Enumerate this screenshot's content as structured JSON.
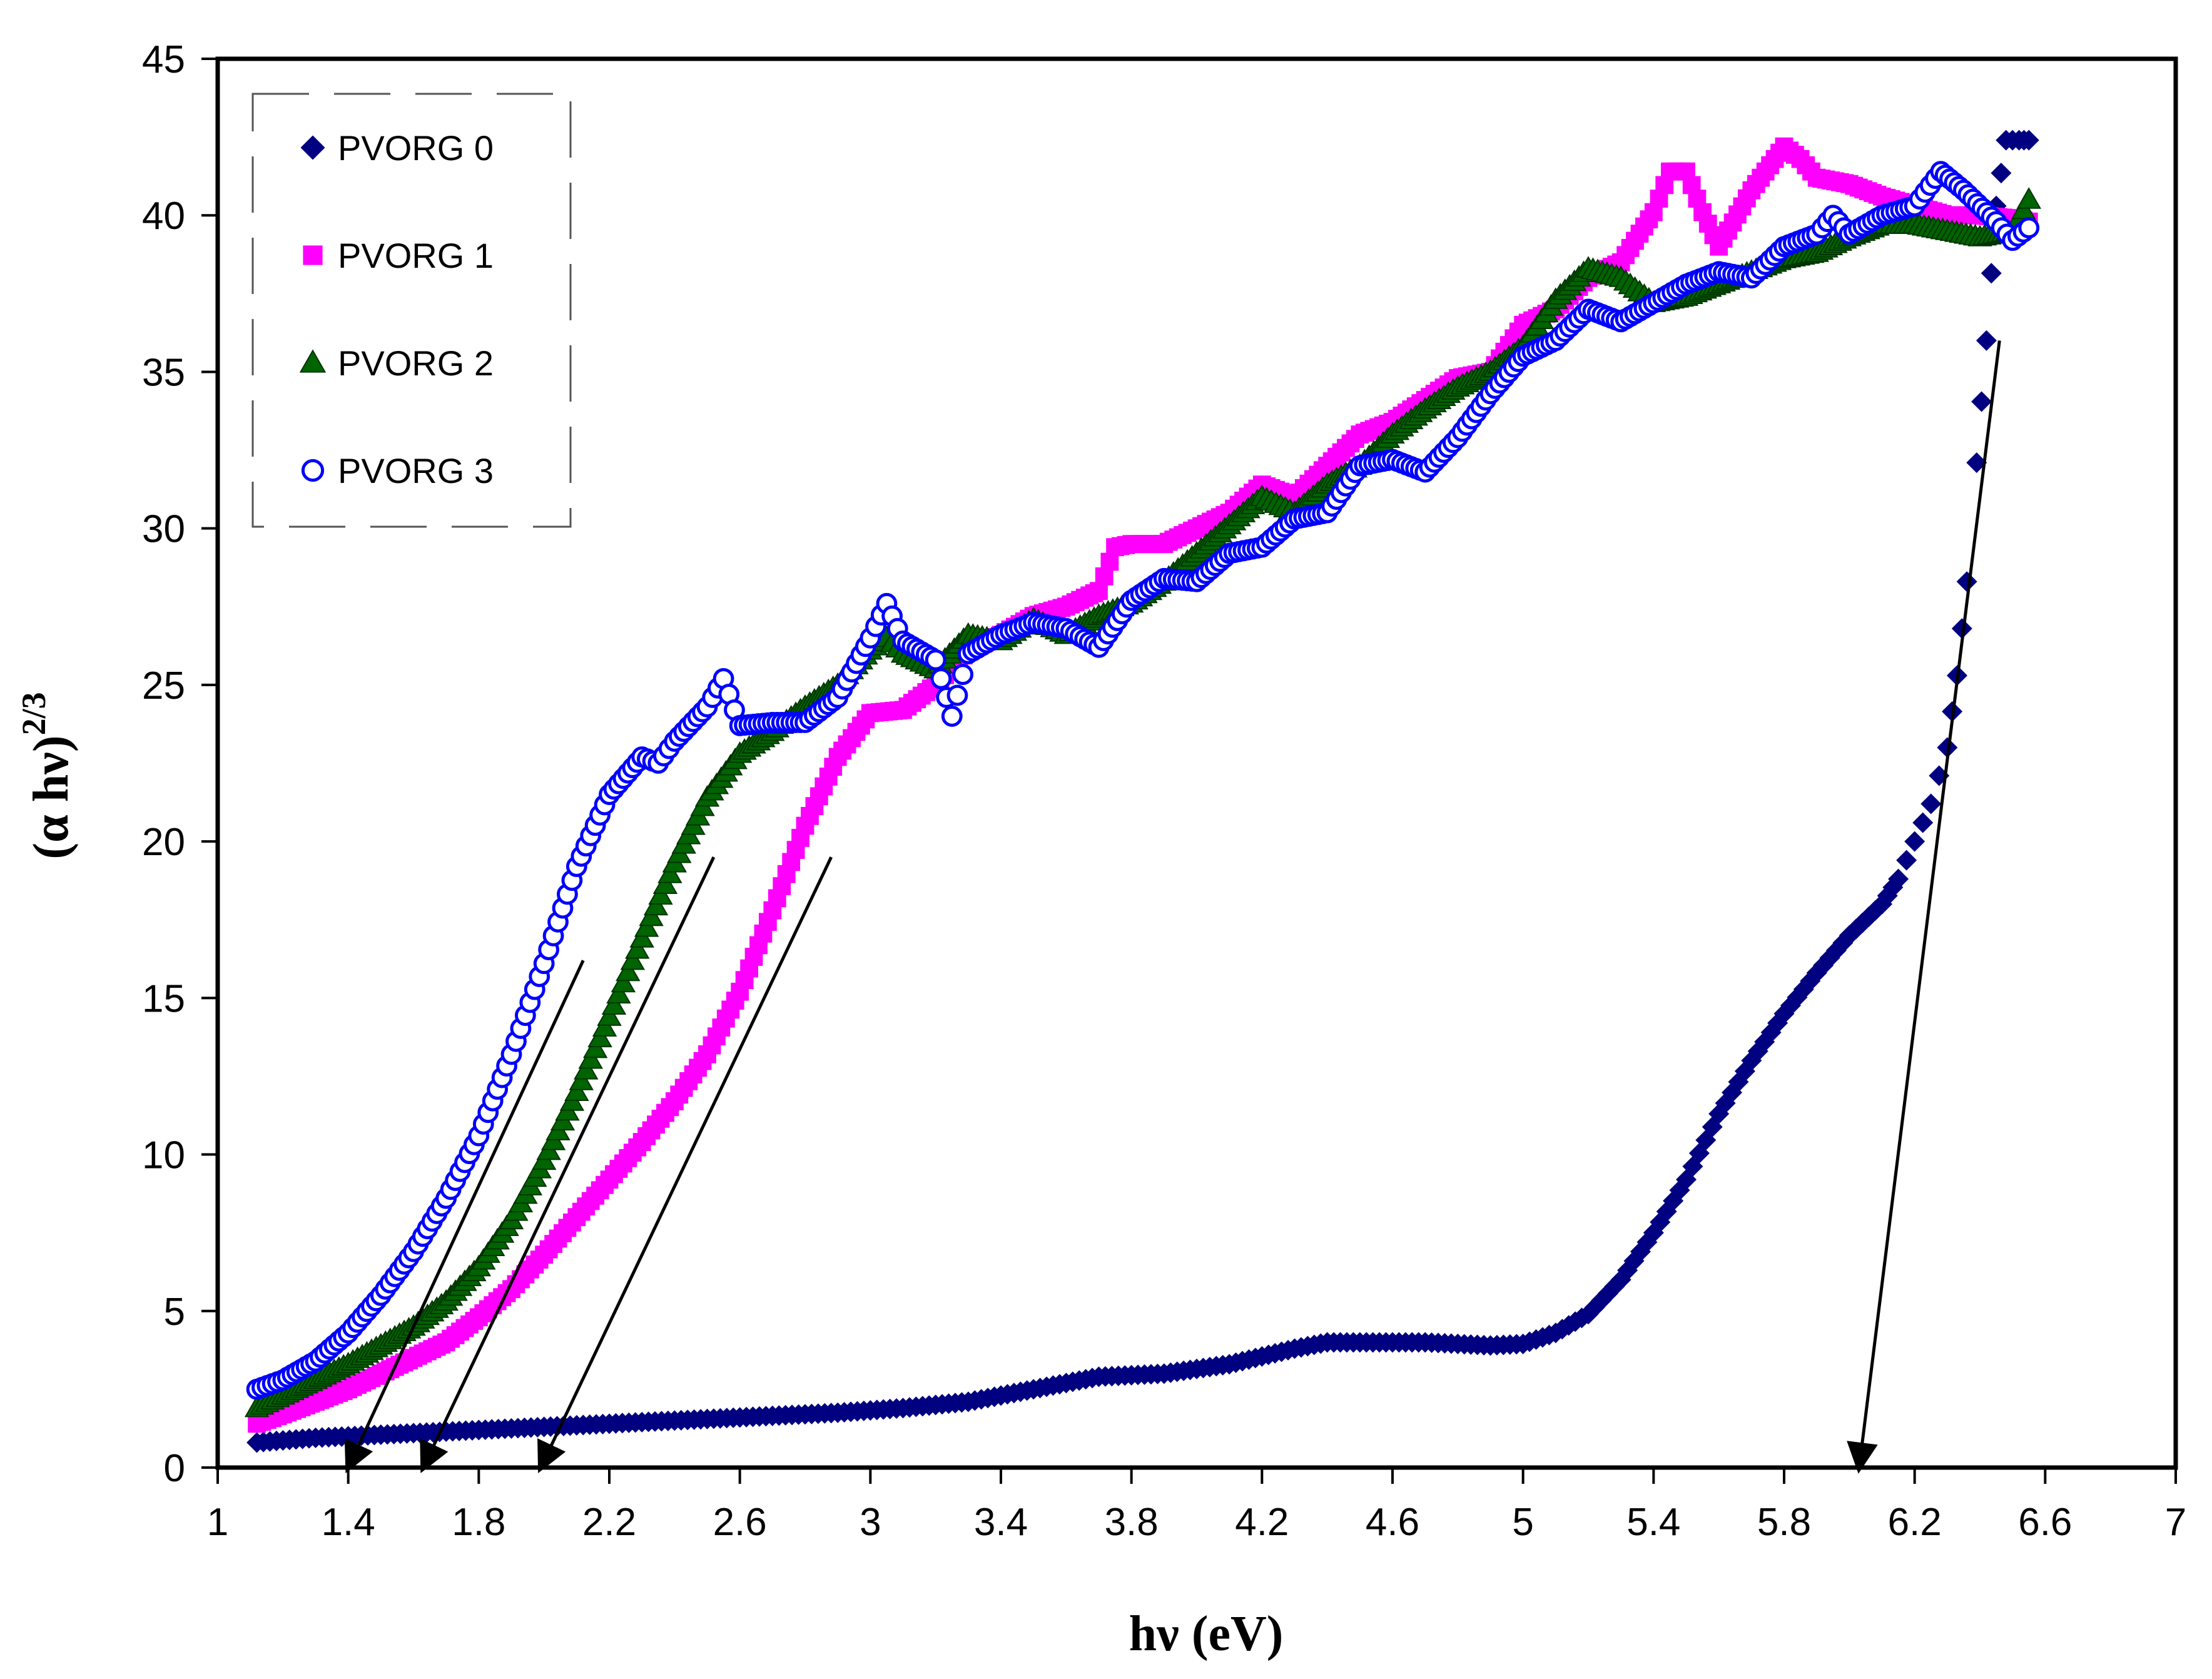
{
  "chart_data": {
    "type": "scatter",
    "title": "",
    "xlabel": "hν (eV)",
    "ylabel": "(α hν)",
    "ylabel_exponent": "2/3",
    "xlim": [
      1,
      7
    ],
    "ylim": [
      0,
      45
    ],
    "xticks": [
      1,
      1.4,
      1.8,
      2.2,
      2.6,
      3,
      3.4,
      3.8,
      4.2,
      4.6,
      5,
      5.4,
      5.8,
      6.2,
      6.6,
      7
    ],
    "xtick_labels": [
      "1",
      "1.4",
      "1.8",
      "2.2",
      "2.6",
      "3",
      "3.4",
      "3.8",
      "4.2",
      "4.6",
      "5",
      "5.4",
      "5.8",
      "6.2",
      "6.6",
      "7"
    ],
    "yticks": [
      0,
      5,
      10,
      15,
      20,
      25,
      30,
      35,
      40,
      45
    ],
    "ytick_labels": [
      "0",
      "5",
      "10",
      "15",
      "20",
      "25",
      "30",
      "35",
      "40",
      "45"
    ],
    "grid": false,
    "legend_position": "top-left",
    "series": [
      {
        "name": "PVORG 0",
        "marker": "diamond",
        "color": "#000080",
        "x": [
          1.12,
          1.3,
          1.5,
          1.7,
          1.9,
          2.1,
          2.3,
          2.5,
          2.7,
          2.9,
          3.1,
          3.3,
          3.5,
          3.7,
          3.9,
          4.1,
          4.3,
          4.4,
          4.5,
          4.7,
          4.9,
          5.0,
          5.1,
          5.2,
          5.3,
          5.4,
          5.5,
          5.6,
          5.7,
          5.8,
          5.9,
          6.0,
          6.1,
          6.15,
          6.2,
          6.25,
          6.3,
          6.33,
          6.36,
          6.39,
          6.42,
          6.45,
          6.48,
          6.52,
          6.55
        ],
        "y": [
          0.8,
          0.95,
          1.05,
          1.15,
          1.25,
          1.35,
          1.45,
          1.55,
          1.65,
          1.75,
          1.9,
          2.1,
          2.5,
          2.9,
          3.0,
          3.3,
          3.8,
          4.0,
          4.0,
          4.0,
          3.9,
          3.95,
          4.3,
          4.9,
          6.0,
          7.5,
          9.2,
          11.3,
          13.0,
          14.5,
          15.8,
          17.0,
          18.0,
          18.8,
          20.0,
          21.2,
          23.0,
          25.3,
          28.3,
          32.1,
          36.0,
          40.3,
          42.4,
          42.4,
          42.4
        ]
      },
      {
        "name": "PVORG 1",
        "marker": "square",
        "color": "#FF00FF",
        "x": [
          1.12,
          1.2,
          1.3,
          1.4,
          1.5,
          1.6,
          1.7,
          1.8,
          1.9,
          2.0,
          2.1,
          2.2,
          2.3,
          2.4,
          2.5,
          2.6,
          2.7,
          2.8,
          2.9,
          3.0,
          3.1,
          3.2,
          3.3,
          3.4,
          3.5,
          3.6,
          3.7,
          3.75,
          3.8,
          3.9,
          4.0,
          4.1,
          4.2,
          4.3,
          4.4,
          4.5,
          4.6,
          4.7,
          4.8,
          4.9,
          5.0,
          5.1,
          5.2,
          5.3,
          5.4,
          5.45,
          5.5,
          5.55,
          5.6,
          5.7,
          5.8,
          5.85,
          5.9,
          6.0,
          6.1,
          6.2,
          6.3,
          6.4,
          6.5,
          6.55
        ],
        "y": [
          1.4,
          1.7,
          2.1,
          2.5,
          3.0,
          3.5,
          4.0,
          4.8,
          5.7,
          6.8,
          8.0,
          9.2,
          10.4,
          11.7,
          13.2,
          15.2,
          17.8,
          20.5,
          22.7,
          24.1,
          24.2,
          25.0,
          26.1,
          26.6,
          27.2,
          27.5,
          28.0,
          29.4,
          29.5,
          29.5,
          30.0,
          30.5,
          31.4,
          31.0,
          32.0,
          33.0,
          33.4,
          34.1,
          34.8,
          35.0,
          36.5,
          37.0,
          38.0,
          38.5,
          40.1,
          41.4,
          41.4,
          40.1,
          39.0,
          40.8,
          42.2,
          41.8,
          41.2,
          41.0,
          40.6,
          40.3,
          40.0,
          40.0,
          39.9,
          39.8
        ]
      },
      {
        "name": "PVORG 2",
        "marker": "triangle",
        "color": "#006400",
        "x": [
          1.12,
          1.2,
          1.3,
          1.4,
          1.5,
          1.6,
          1.7,
          1.8,
          1.9,
          2.0,
          2.1,
          2.2,
          2.3,
          2.4,
          2.5,
          2.6,
          2.7,
          2.8,
          2.9,
          3.0,
          3.05,
          3.1,
          3.2,
          3.3,
          3.4,
          3.5,
          3.6,
          3.7,
          3.8,
          3.9,
          4.0,
          4.1,
          4.2,
          4.3,
          4.4,
          4.5,
          4.6,
          4.7,
          4.8,
          4.9,
          5.0,
          5.1,
          5.2,
          5.3,
          5.4,
          5.5,
          5.6,
          5.7,
          5.8,
          5.9,
          6.0,
          6.1,
          6.2,
          6.3,
          6.4,
          6.5,
          6.55
        ],
        "y": [
          1.9,
          2.3,
          2.8,
          3.3,
          3.9,
          4.5,
          5.3,
          6.4,
          7.9,
          9.8,
          12.0,
          14.4,
          16.9,
          19.3,
          21.4,
          22.8,
          23.5,
          24.3,
          25.0,
          26.1,
          26.5,
          26.0,
          25.5,
          26.6,
          26.4,
          27.1,
          26.6,
          27.2,
          27.6,
          28.3,
          29.2,
          30.1,
          31.0,
          30.5,
          31.4,
          32.0,
          33.0,
          33.8,
          34.5,
          35.0,
          35.8,
          37.3,
          38.3,
          38.0,
          37.2,
          37.4,
          37.8,
          38.2,
          38.6,
          38.8,
          39.3,
          39.7,
          39.7,
          39.5,
          39.3,
          39.5,
          40.5
        ]
      },
      {
        "name": "PVORG 3",
        "marker": "circle",
        "color": "#0000FF",
        "x": [
          1.12,
          1.2,
          1.3,
          1.4,
          1.5,
          1.6,
          1.7,
          1.8,
          1.9,
          2.0,
          2.1,
          2.2,
          2.3,
          2.35,
          2.4,
          2.5,
          2.55,
          2.6,
          2.7,
          2.8,
          2.9,
          3.0,
          3.05,
          3.1,
          3.2,
          3.25,
          3.3,
          3.4,
          3.5,
          3.6,
          3.7,
          3.8,
          3.9,
          4.0,
          4.1,
          4.2,
          4.3,
          4.4,
          4.5,
          4.6,
          4.7,
          4.8,
          4.9,
          5.0,
          5.1,
          5.2,
          5.3,
          5.4,
          5.5,
          5.6,
          5.7,
          5.8,
          5.9,
          5.95,
          6.0,
          6.1,
          6.2,
          6.28,
          6.35,
          6.45,
          6.5,
          6.55
        ],
        "y": [
          2.5,
          2.8,
          3.4,
          4.3,
          5.5,
          6.9,
          8.6,
          10.6,
          13.2,
          16.1,
          19.2,
          21.5,
          22.7,
          22.5,
          23.2,
          24.3,
          25.2,
          23.7,
          23.8,
          23.8,
          24.6,
          26.5,
          27.6,
          26.4,
          25.8,
          24.0,
          26.0,
          26.6,
          27.0,
          26.8,
          26.2,
          27.7,
          28.4,
          28.3,
          29.2,
          29.4,
          30.3,
          30.5,
          32.0,
          32.2,
          31.8,
          32.9,
          34.3,
          35.5,
          36.0,
          37.0,
          36.6,
          37.2,
          37.8,
          38.2,
          38.0,
          39.0,
          39.4,
          40.0,
          39.4,
          40.0,
          40.3,
          41.4,
          40.8,
          39.8,
          39.2,
          39.6
        ]
      }
    ],
    "tangent_lines": [
      {
        "series": "PVORG 3",
        "x1": 2.12,
        "y1": 16.2,
        "x2": 1.4,
        "y2": 0
      },
      {
        "series": "PVORG 2",
        "x1": 2.52,
        "y1": 19.5,
        "x2": 1.63,
        "y2": 0
      },
      {
        "series": "PVORG 1",
        "x1": 2.88,
        "y1": 19.5,
        "x2": 1.99,
        "y2": 0
      },
      {
        "series": "PVORG 0",
        "x1": 6.46,
        "y1": 36.0,
        "x2": 6.03,
        "y2": 0
      }
    ]
  }
}
